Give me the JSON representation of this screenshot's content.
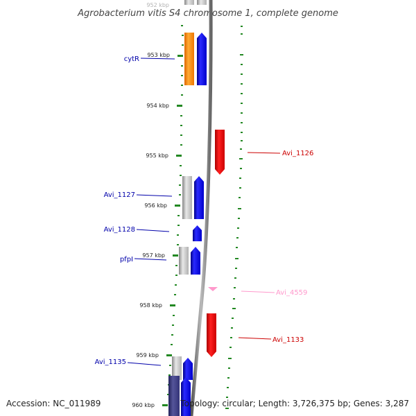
{
  "title": "Agrobacterium vitis S4 chromosome 1, complete genome",
  "accession": "Accession: NC_011989",
  "summary": "Topology: circular; Length: 3,726,375 bp; Genes: 3,287",
  "colors": {
    "forward_gene": "#0000ee",
    "reverse_gene": "#ee0000",
    "orange_gene": "#ff8800",
    "gray_gene": "#c0c0c0",
    "navy_gene": "#333388",
    "pink_gene": "#ff99cc",
    "tick_green": "#228822",
    "backbone": "#808080"
  },
  "scale": {
    "unit": "kbp",
    "tick_labels": [
      "952 kbp",
      "953 kbp",
      "954 kbp",
      "955 kbp",
      "956 kbp",
      "957 kbp",
      "958 kbp",
      "959 kbp",
      "960 kbp"
    ]
  },
  "gene_labels": [
    {
      "text": "cytR",
      "color": "#0000aa"
    },
    {
      "text": "Avi_1126",
      "color": "#cc0000"
    },
    {
      "text": "Avi_1127",
      "color": "#0000aa"
    },
    {
      "text": "Avi_1128",
      "color": "#0000aa"
    },
    {
      "text": "pfpI",
      "color": "#0000aa"
    },
    {
      "text": "Avi_4559",
      "color": "#ff99cc"
    },
    {
      "text": "Avi_1133",
      "color": "#cc0000"
    },
    {
      "text": "Avi_1135",
      "color": "#0000aa"
    }
  ]
}
